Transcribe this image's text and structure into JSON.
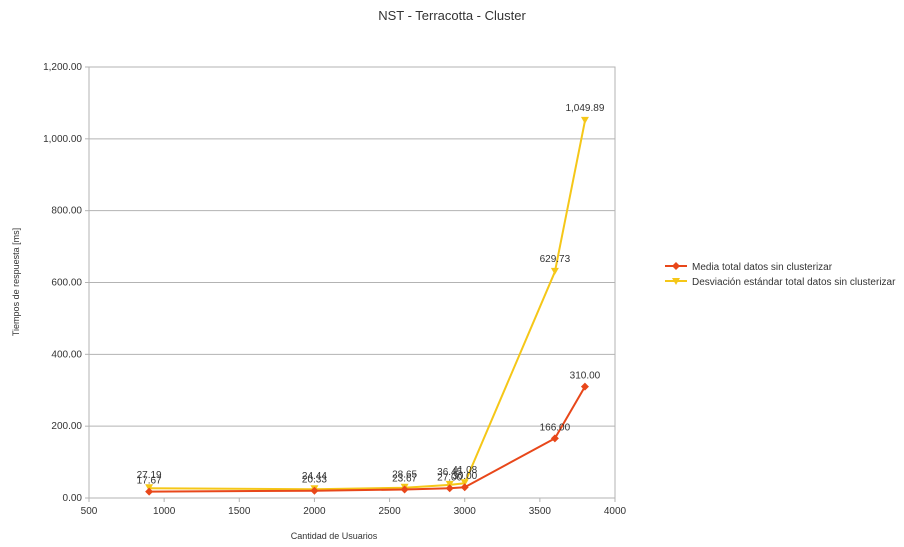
{
  "chart_data": {
    "type": "line",
    "title": "NST - Terracotta - Cluster",
    "xlabel": "Cantidad de Usuarios",
    "ylabel": "Tiempos de respuesta [ms]",
    "xlim": [
      500,
      4000
    ],
    "ylim": [
      0,
      1200
    ],
    "x_ticks": [
      "500",
      "1000",
      "1500",
      "2000",
      "2500",
      "3000",
      "3500",
      "4000"
    ],
    "y_ticks": [
      "0.00",
      "200.00",
      "400.00",
      "600.00",
      "800.00",
      "1,000.00",
      "1,200.00"
    ],
    "grid": true,
    "legend_position": "right",
    "series": [
      {
        "name": "Media total datos sin clusterizar",
        "color": "#e8471a",
        "marker": "diamond",
        "x": [
          900,
          2000,
          2600,
          2900,
          3000,
          3600,
          3800
        ],
        "values": [
          17.67,
          20.33,
          23.67,
          27.0,
          30.0,
          166.0,
          310.0
        ],
        "labels": [
          "17.67",
          "20.33",
          "23.67",
          "27.00",
          "30.00",
          "166.00",
          "310.00"
        ]
      },
      {
        "name": "Desviación estándar total datos sin clusterizar",
        "color": "#f5c718",
        "marker": "triangle-down",
        "x": [
          900,
          2000,
          2600,
          2900,
          3000,
          3600,
          3800
        ],
        "values": [
          27.19,
          24.44,
          28.65,
          36.45,
          41.08,
          629.73,
          1049.89
        ],
        "labels": [
          "27.19",
          "24.44",
          "28.65",
          "36.45",
          "41.08",
          "629.73",
          "1,049.89"
        ]
      }
    ]
  }
}
